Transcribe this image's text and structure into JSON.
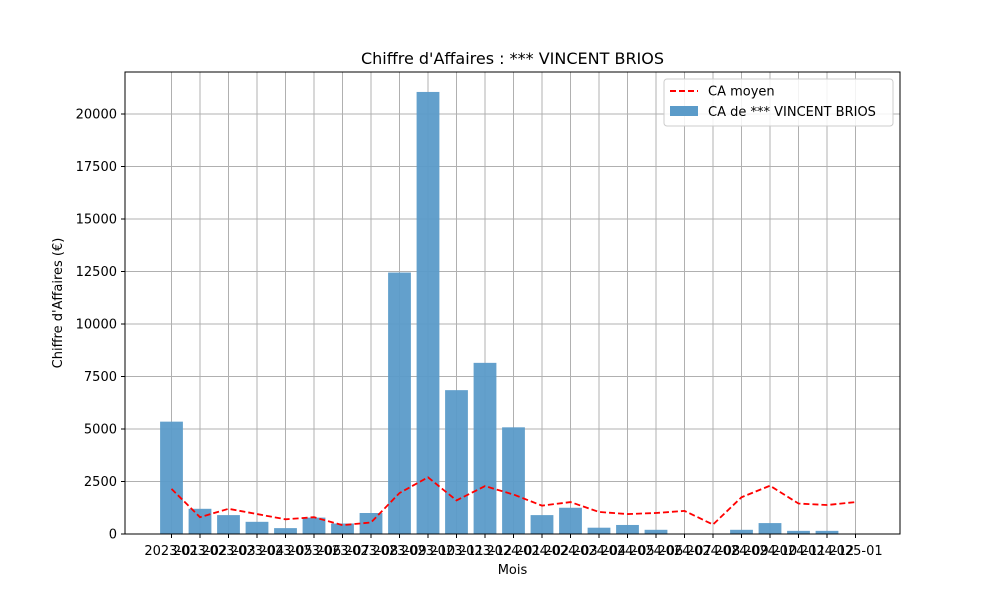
{
  "chart_data": {
    "type": "bar",
    "title": "Chiffre d'Affaires : *** VINCENT BRIOS",
    "xlabel": "Mois",
    "ylabel": "Chiffre d'Affaires (€)",
    "ylim": [
      0,
      22000
    ],
    "yticks": [
      0,
      2500,
      5000,
      7500,
      10000,
      12500,
      15000,
      17500,
      20000
    ],
    "grid": true,
    "legend_position": "top-right",
    "categories": [
      "2023-01",
      "2023-02",
      "2023-03",
      "2023-04",
      "2023-05",
      "2023-06",
      "2023-07",
      "2023-08",
      "2023-09",
      "2023-10",
      "2023-11",
      "2023-12",
      "2024-01",
      "2024-02",
      "2024-03",
      "2024-04",
      "2024-05",
      "2024-06",
      "2024-07",
      "2024-08",
      "2024-09",
      "2024-10",
      "2024-11",
      "2024-12",
      "2025-01"
    ],
    "series": [
      {
        "name": "CA de *** VINCENT BRIOS",
        "type": "bar",
        "color": "#5b9bc9",
        "values": [
          5350,
          1200,
          900,
          580,
          280,
          780,
          500,
          1000,
          12450,
          21050,
          6850,
          8150,
          5080,
          900,
          1250,
          300,
          430,
          200,
          0,
          0,
          200,
          520,
          150,
          150,
          0
        ]
      },
      {
        "name": "CA moyen",
        "type": "line",
        "style": "dashed",
        "color": "#ff0000",
        "values": [
          2150,
          800,
          1200,
          950,
          700,
          800,
          420,
          550,
          1950,
          2700,
          1600,
          2280,
          1880,
          1350,
          1520,
          1050,
          950,
          1000,
          1100,
          450,
          1750,
          2300,
          1450,
          1380,
          1520
        ]
      }
    ]
  }
}
